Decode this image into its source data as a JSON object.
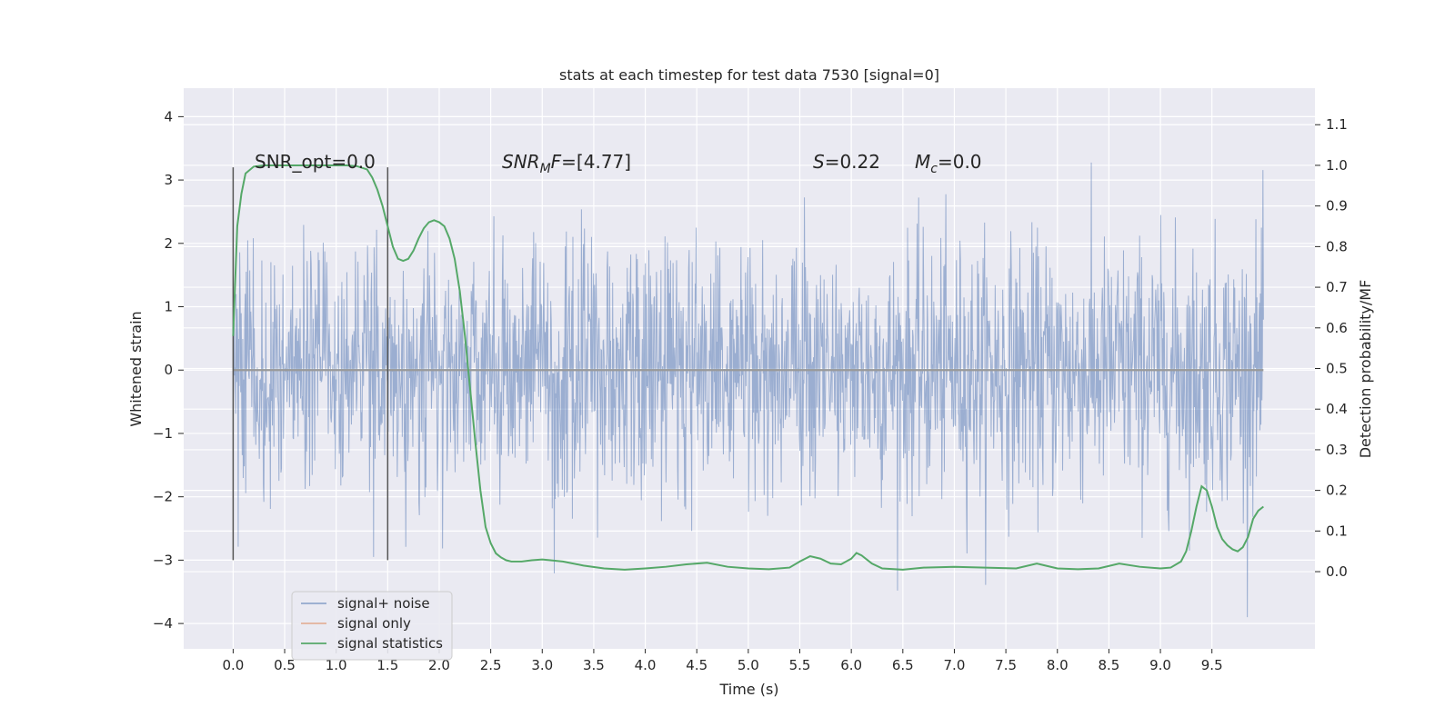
{
  "chart_data": {
    "type": "line",
    "title": "stats at each timestep for test data 7530 [signal=0]",
    "xlabel": "Time (s)",
    "ylabel_left": "Whitened strain",
    "ylabel_right": "Detection probability/MF",
    "xlim": [
      -0.48,
      10.5
    ],
    "ylim_left": [
      -4.4,
      4.45
    ],
    "ylim_right": [
      -0.19,
      1.19
    ],
    "x_ticks": [
      "0.0",
      "0.5",
      "1.0",
      "1.5",
      "2.0",
      "2.5",
      "3.0",
      "3.5",
      "4.0",
      "4.5",
      "5.0",
      "5.5",
      "6.0",
      "6.5",
      "7.0",
      "7.5",
      "8.0",
      "8.5",
      "9.0",
      "9.5"
    ],
    "x_tick_values": [
      0,
      0.5,
      1,
      1.5,
      2,
      2.5,
      3,
      3.5,
      4,
      4.5,
      5,
      5.5,
      6,
      6.5,
      7,
      7.5,
      8,
      8.5,
      9,
      9.5
    ],
    "y_left_ticks": [
      "−4",
      "−3",
      "−2",
      "−1",
      "0",
      "1",
      "2",
      "3",
      "4"
    ],
    "y_left_tick_values": [
      -4,
      -3,
      -2,
      -1,
      0,
      1,
      2,
      3,
      4
    ],
    "y_right_ticks": [
      "0.0",
      "0.1",
      "0.2",
      "0.3",
      "0.4",
      "0.5",
      "0.6",
      "0.7",
      "0.8",
      "0.9",
      "1.0",
      "1.1"
    ],
    "y_right_tick_values": [
      0,
      0.1,
      0.2,
      0.3,
      0.4,
      0.5,
      0.6,
      0.7,
      0.8,
      0.9,
      1.0,
      1.1
    ],
    "grid": true,
    "legend_position": "lower-left",
    "series": [
      {
        "name": "signal+ noise",
        "color": "#4c72b0",
        "axis": "left",
        "style": "dense noise, ±1 sigma band with peaks to about ±4",
        "x_range": [
          0,
          10.0
        ]
      },
      {
        "name": "signal only",
        "color": "#dd8452",
        "axis": "left",
        "x": [
          0,
          10.0
        ],
        "y": [
          0,
          0
        ]
      },
      {
        "name": "signal statistics",
        "color": "#55a868",
        "axis": "right",
        "x": [
          0,
          0.04,
          0.08,
          0.12,
          0.2,
          0.3,
          0.5,
          0.7,
          0.9,
          1.0,
          1.1,
          1.2,
          1.3,
          1.35,
          1.4,
          1.45,
          1.5,
          1.55,
          1.6,
          1.65,
          1.7,
          1.75,
          1.8,
          1.85,
          1.9,
          1.95,
          2.0,
          2.05,
          2.1,
          2.15,
          2.2,
          2.25,
          2.3,
          2.35,
          2.4,
          2.45,
          2.5,
          2.55,
          2.6,
          2.65,
          2.7,
          2.8,
          2.9,
          3.0,
          3.2,
          3.4,
          3.6,
          3.8,
          4.0,
          4.2,
          4.4,
          4.6,
          4.8,
          5.0,
          5.2,
          5.4,
          5.5,
          5.6,
          5.7,
          5.8,
          5.9,
          6.0,
          6.05,
          6.1,
          6.2,
          6.3,
          6.5,
          6.7,
          7.0,
          7.3,
          7.6,
          7.8,
          8.0,
          8.2,
          8.4,
          8.6,
          8.8,
          9.0,
          9.1,
          9.2,
          9.25,
          9.3,
          9.35,
          9.4,
          9.45,
          9.5,
          9.55,
          9.6,
          9.65,
          9.7,
          9.75,
          9.8,
          9.85,
          9.9,
          9.95,
          10.0
        ],
        "y": [
          0.58,
          0.85,
          0.93,
          0.98,
          0.997,
          1.0,
          1.0,
          1.0,
          1.0,
          1.0,
          1.0,
          0.998,
          0.99,
          0.97,
          0.94,
          0.9,
          0.85,
          0.8,
          0.77,
          0.765,
          0.77,
          0.79,
          0.82,
          0.845,
          0.86,
          0.865,
          0.86,
          0.85,
          0.82,
          0.77,
          0.69,
          0.58,
          0.45,
          0.32,
          0.2,
          0.11,
          0.07,
          0.045,
          0.035,
          0.028,
          0.025,
          0.025,
          0.028,
          0.03,
          0.025,
          0.015,
          0.008,
          0.005,
          0.008,
          0.012,
          0.018,
          0.022,
          0.012,
          0.008,
          0.006,
          0.01,
          0.025,
          0.038,
          0.032,
          0.02,
          0.018,
          0.032,
          0.046,
          0.04,
          0.02,
          0.008,
          0.005,
          0.01,
          0.012,
          0.01,
          0.008,
          0.02,
          0.008,
          0.006,
          0.008,
          0.02,
          0.012,
          0.008,
          0.01,
          0.025,
          0.05,
          0.1,
          0.16,
          0.21,
          0.2,
          0.16,
          0.11,
          0.08,
          0.065,
          0.055,
          0.05,
          0.06,
          0.085,
          0.13,
          0.15,
          0.16
        ]
      }
    ],
    "vertical_lines": [
      {
        "x": 0.0,
        "color": "#555555",
        "y_range": [
          -3,
          3.2
        ]
      },
      {
        "x": 1.5,
        "color": "#555555",
        "y_range": [
          -3,
          3.2
        ]
      }
    ],
    "annotations": {
      "snr_opt": "SNR_opt=0.0",
      "snr_mf_main": "SNR",
      "snr_mf_sub": "M",
      "snr_mf_rest": "F",
      "snr_mf_value": "=[4.77]",
      "s_symbol": "S",
      "s_value": "=0.22",
      "mc_symbol": "M",
      "mc_sub": "c",
      "mc_value": "=0.0"
    }
  }
}
